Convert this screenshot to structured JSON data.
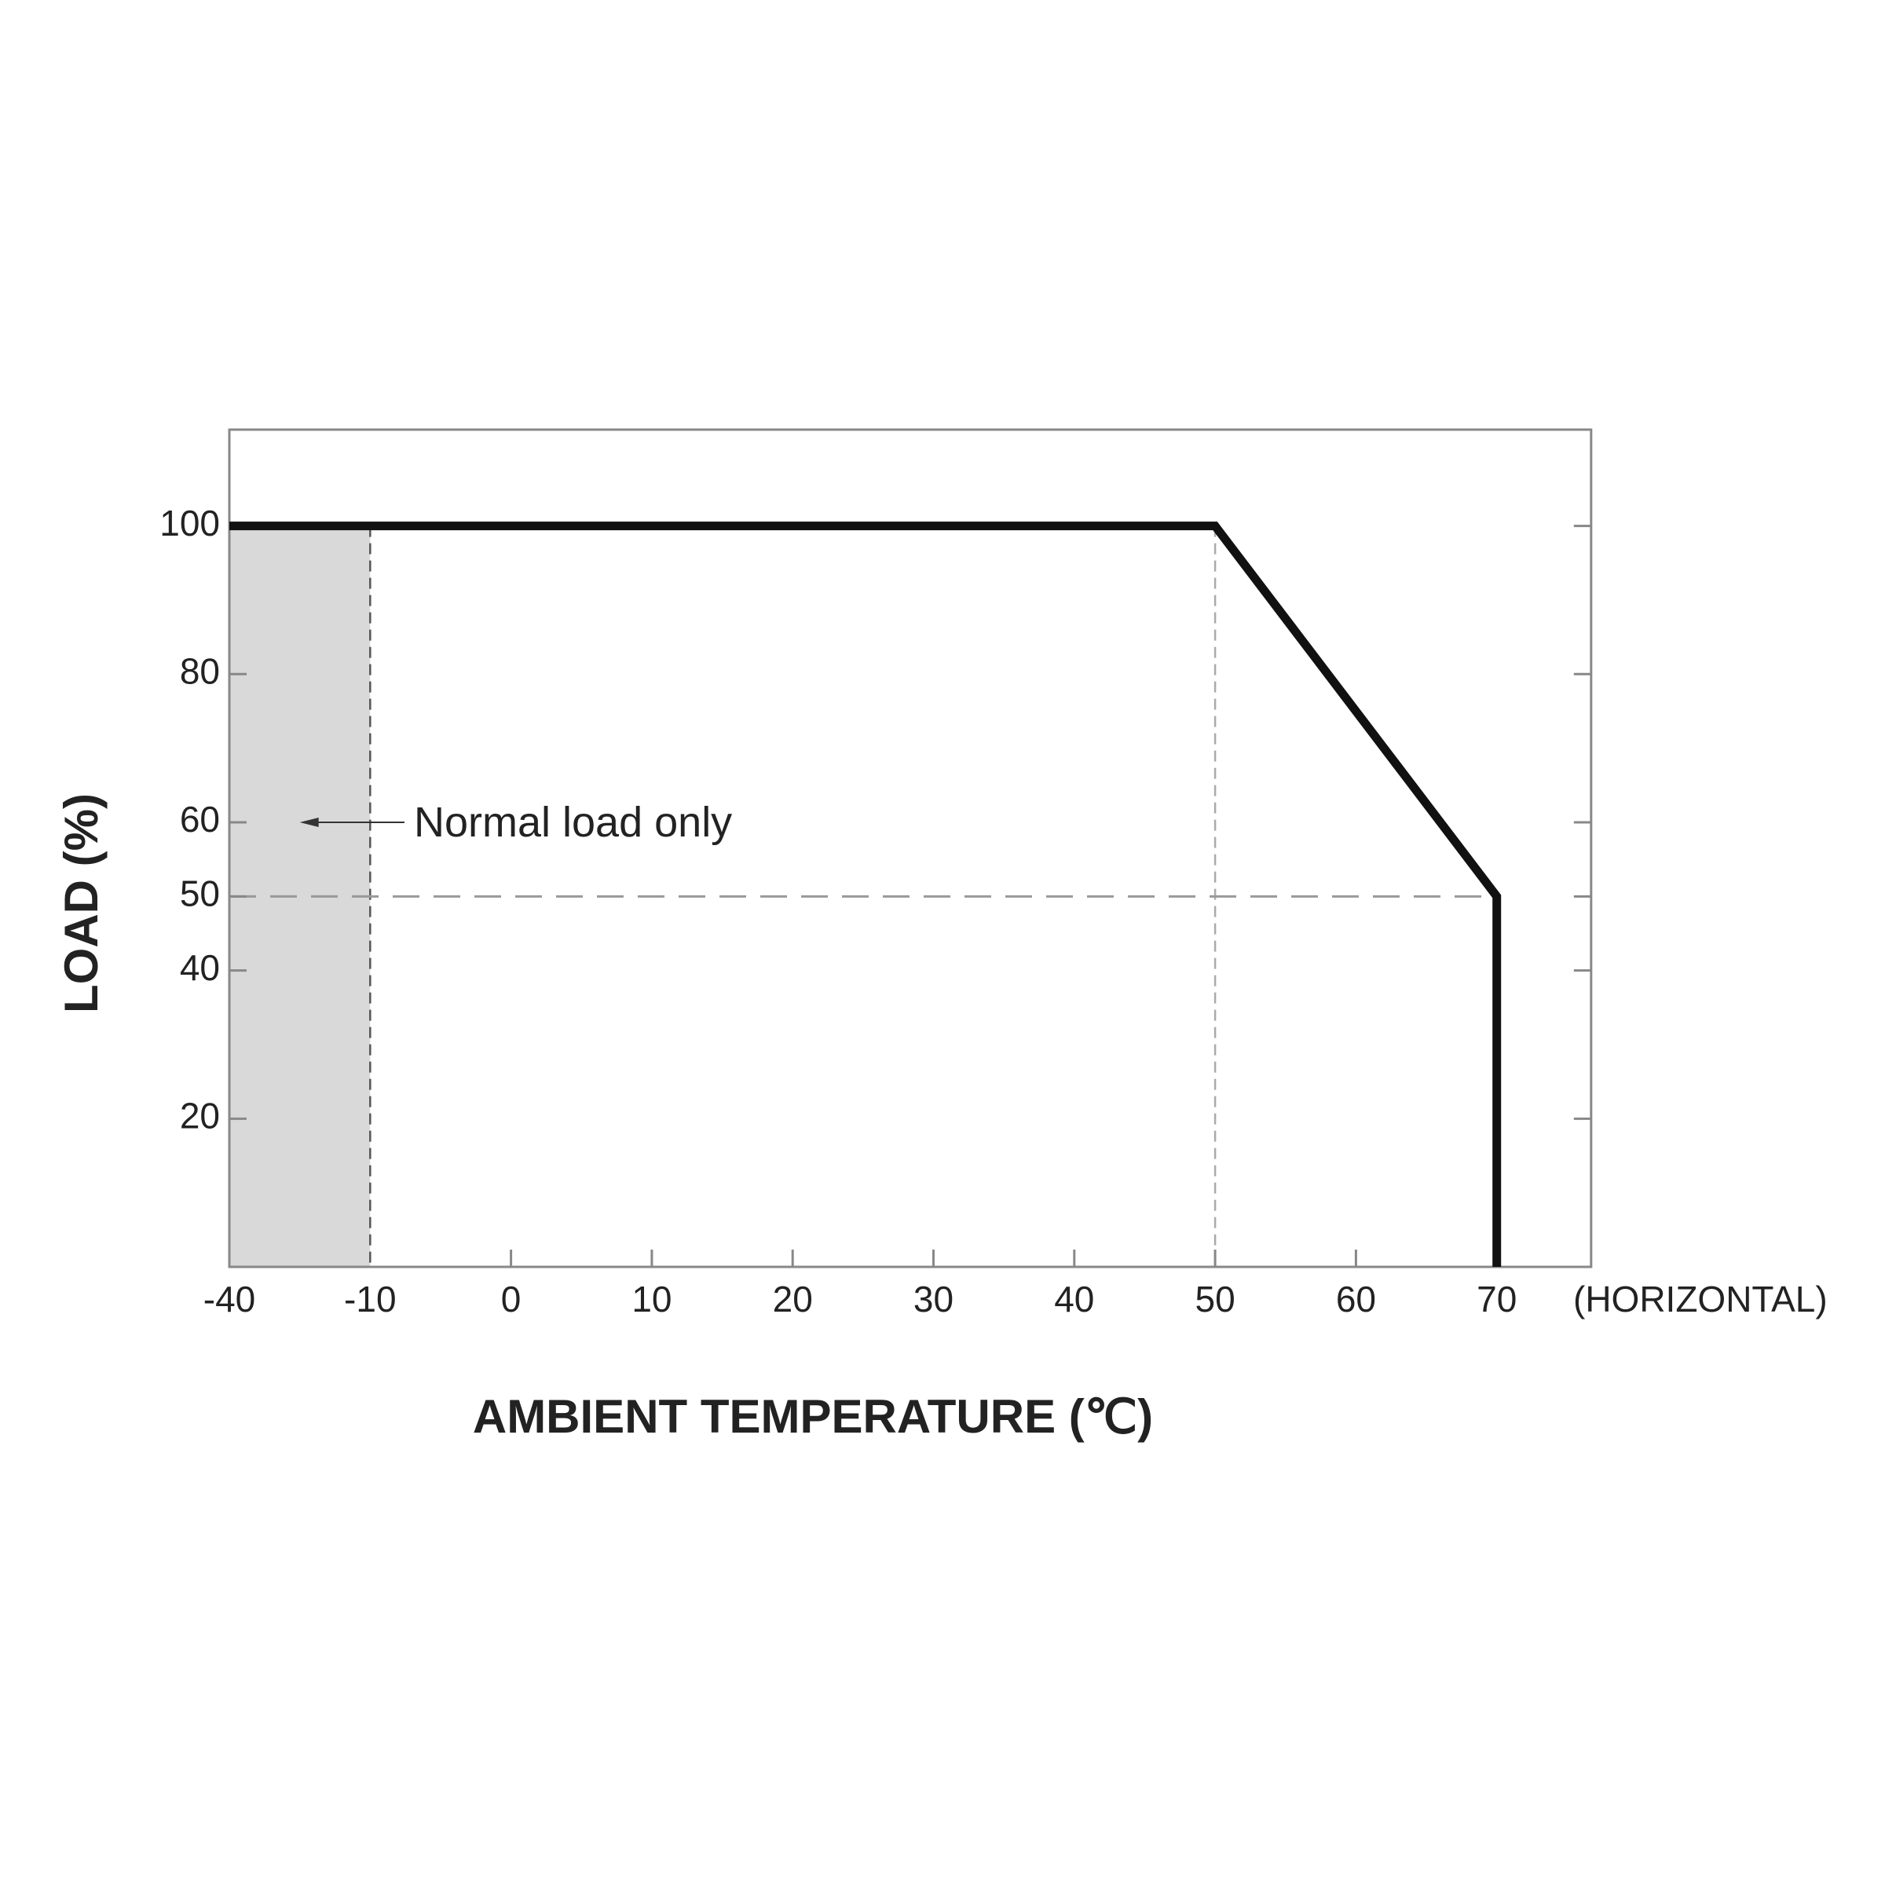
{
  "chart_data": {
    "type": "line",
    "x_title": "AMBIENT TEMPERATURE (℃)",
    "x_note": "(HORIZONTAL)",
    "y_title": "LOAD (%)",
    "x": [
      -40,
      50,
      70,
      70
    ],
    "values": [
      100,
      100,
      50,
      0
    ],
    "color": "#111111",
    "shaded_region": {
      "x": [
        -40,
        -10
      ],
      "color": "#d9d9d9"
    },
    "annotation": {
      "text": "Normal load only",
      "x": -25,
      "y": 60
    },
    "xlim": [
      -40,
      76.7
    ],
    "xticks": [
      -40,
      -10,
      0,
      10,
      20,
      30,
      40,
      50,
      60,
      70
    ],
    "ylim": [
      0,
      113
    ],
    "yticks": [
      20,
      40,
      50,
      60,
      80,
      100
    ]
  }
}
